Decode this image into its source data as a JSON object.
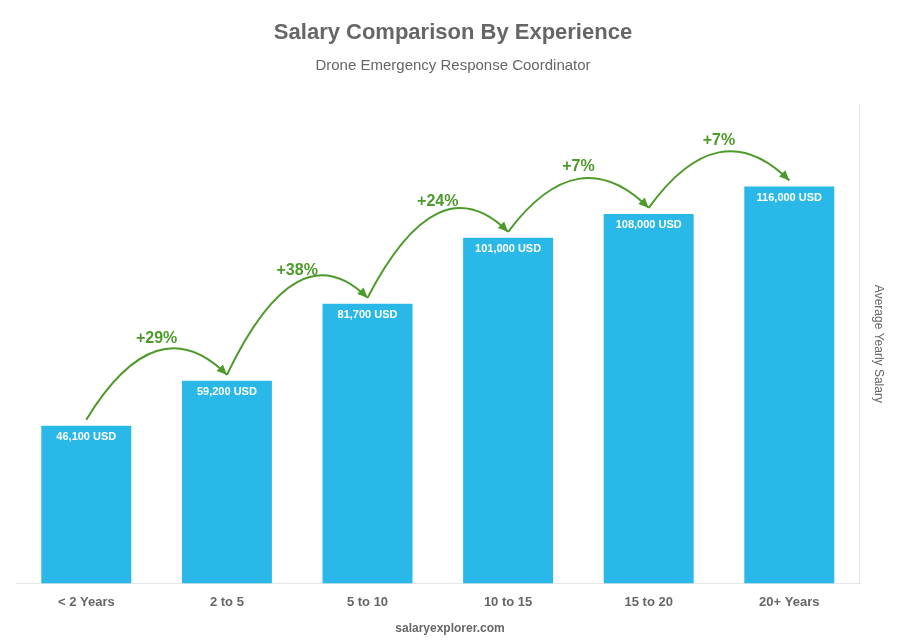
{
  "chart_data": {
    "type": "bar",
    "title": "Salary Comparison By Experience",
    "subtitle": "Drone Emergency Response Coordinator",
    "ylabel": "Average Yearly Salary",
    "categories": [
      "< 2 Years",
      "2 to 5",
      "5 to 10",
      "10 to 15",
      "15 to 20",
      "20+ Years"
    ],
    "values": [
      46100,
      59200,
      81700,
      101000,
      108000,
      116000
    ],
    "value_labels": [
      "46,100 USD",
      "59,200 USD",
      "81,700 USD",
      "101,000 USD",
      "108,000 USD",
      "116,000 USD"
    ],
    "data_labels": true,
    "color": "#29b8e8",
    "ylim": [
      0,
      140000
    ],
    "grid": false,
    "tick_labels": "x",
    "annotations": [
      {
        "text": "+29%",
        "from": "< 2 Years",
        "to": "2 to 5"
      },
      {
        "text": "+38%",
        "from": "2 to 5",
        "to": "5 to 10"
      },
      {
        "text": "+24%",
        "from": "5 to 10",
        "to": "10 to 15"
      },
      {
        "text": "+7%",
        "from": "10 to 15",
        "to": "15 to 20"
      },
      {
        "text": "+7%",
        "from": "15 to 20",
        "to": "20+ Years"
      },
      {
        "text": "salaryexplorer.com"
      }
    ]
  }
}
